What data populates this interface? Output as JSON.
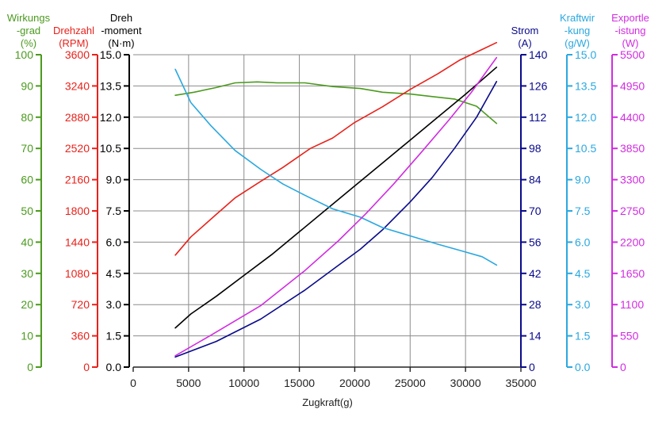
{
  "chart_data": {
    "type": "line",
    "xlabel": "Zugkraft(g)",
    "xlim": [
      0,
      35000
    ],
    "xticks": [
      0,
      5000,
      10000,
      15000,
      20000,
      25000,
      30000,
      35000
    ],
    "axes": [
      {
        "id": "wirkungsgrad",
        "title": [
          "Wirkungs",
          "-grad",
          "(%)"
        ],
        "color": "#4b9a1e",
        "min": 0,
        "max": 100,
        "step": 10,
        "ticks": [
          "0",
          "10",
          "20",
          "30",
          "40",
          "50",
          "60",
          "70",
          "80",
          "90",
          "100"
        ]
      },
      {
        "id": "drehzahl",
        "title": [
          "Drehzahl",
          "(RPM)"
        ],
        "color": "#e8221b",
        "min": 0,
        "max": 3600,
        "step": 360,
        "ticks": [
          "0",
          "360",
          "720",
          "1080",
          "1440",
          "1800",
          "2160",
          "2520",
          "2880",
          "3240",
          "3600"
        ]
      },
      {
        "id": "drehmoment",
        "title": [
          "Dreh",
          "-moment",
          "(N·m)"
        ],
        "color": "#000000",
        "min": 0,
        "max": 15,
        "step": 1.5,
        "ticks": [
          "0.0",
          "1.5",
          "3.0",
          "4.5",
          "6.0",
          "7.5",
          "9.0",
          "10.5",
          "12.0",
          "13.5",
          "15.0"
        ]
      },
      {
        "id": "strom",
        "title": [
          "Strom",
          "(A)"
        ],
        "color": "#0a0a8c",
        "min": 0,
        "max": 140,
        "step": 14,
        "ticks": [
          "0",
          "14",
          "28",
          "42",
          "56",
          "70",
          "84",
          "98",
          "112",
          "126",
          "140"
        ]
      },
      {
        "id": "kraftwirkung",
        "title": [
          "Kraftwir",
          "-kung",
          "(g/W)"
        ],
        "color": "#2aa8e0",
        "min": 0,
        "max": 15,
        "step": 1.5,
        "ticks": [
          "0.0",
          "1.5",
          "3.0",
          "4.5",
          "6.0",
          "7.5",
          "9.0",
          "10.5",
          "12.0",
          "13.5",
          "15.0"
        ]
      },
      {
        "id": "exportleistung",
        "title": [
          "Exportle",
          "-istung",
          "(W)"
        ],
        "color": "#d12ce0",
        "min": 0,
        "max": 5500,
        "step": 550,
        "ticks": [
          "0",
          "550",
          "1100",
          "1650",
          "2200",
          "2750",
          "3300",
          "3850",
          "4400",
          "4950",
          "5500"
        ]
      }
    ],
    "series": [
      {
        "name": "Wirkungsgrad",
        "axis": "wirkungsgrad",
        "color": "#4b9a1e",
        "x": [
          3800,
          5500,
          7500,
          9200,
          11200,
          13000,
          15500,
          18000,
          20500,
          22500,
          25000,
          27000,
          29000,
          31000,
          32800
        ],
        "y": [
          87.0,
          88.0,
          89.5,
          91.0,
          91.3,
          91.0,
          91.0,
          89.8,
          89.2,
          88.0,
          87.4,
          86.6,
          85.8,
          83.5,
          78.0
        ]
      },
      {
        "name": "Drehzahl",
        "axis": "drehzahl",
        "color": "#e8221b",
        "x": [
          3800,
          5200,
          7500,
          9200,
          11500,
          13500,
          16000,
          18000,
          20000,
          22500,
          25000,
          27500,
          29500,
          31500,
          32800
        ],
        "y": [
          1290,
          1500,
          1760,
          1950,
          2140,
          2300,
          2520,
          2640,
          2820,
          3000,
          3200,
          3380,
          3540,
          3660,
          3740
        ]
      },
      {
        "name": "Drehmoment",
        "axis": "drehmoment",
        "color": "#000000",
        "x": [
          3800,
          5200,
          7500,
          10000,
          12500,
          15000,
          17500,
          20000,
          22500,
          25000,
          27500,
          30000,
          32800
        ],
        "y": [
          1.88,
          2.55,
          3.4,
          4.4,
          5.4,
          6.5,
          7.6,
          8.7,
          9.8,
          10.9,
          12.0,
          13.1,
          14.4
        ]
      },
      {
        "name": "Strom",
        "axis": "strom",
        "color": "#0a0a8c",
        "x": [
          3800,
          7500,
          11500,
          15500,
          18500,
          20500,
          22500,
          25000,
          27000,
          29000,
          31000,
          32800
        ],
        "y": [
          4.5,
          11.5,
          21.5,
          34.5,
          45.5,
          52.8,
          61.5,
          74.0,
          85.0,
          98.0,
          112.0,
          128.0
        ]
      },
      {
        "name": "Kraftwirkung",
        "axis": "kraftwirkung",
        "color": "#2aa8e0",
        "x": [
          3800,
          5200,
          7000,
          9200,
          11500,
          13500,
          15500,
          18000,
          20500,
          22500,
          25000,
          27500,
          29500,
          31500,
          32800
        ],
        "y": [
          14.3,
          12.7,
          11.6,
          10.4,
          9.5,
          8.8,
          8.25,
          7.6,
          7.2,
          6.7,
          6.3,
          5.9,
          5.6,
          5.3,
          4.9
        ]
      },
      {
        "name": "Exportleistung",
        "axis": "exportleistung",
        "color": "#d12ce0",
        "x": [
          3800,
          7000,
          11500,
          15500,
          18500,
          21000,
          23500,
          26000,
          28500,
          30500,
          32800
        ],
        "y": [
          200,
          560,
          1080,
          1700,
          2220,
          2700,
          3220,
          3780,
          4350,
          4830,
          5450
        ]
      }
    ]
  }
}
